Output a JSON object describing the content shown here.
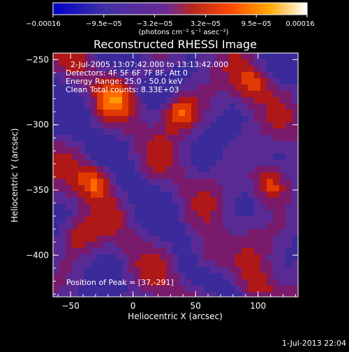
{
  "colorbar": {
    "tick_labels": [
      "−0.00016",
      "−9.5e−05",
      "−3.2e−05",
      "3.2e−05",
      "9.5e−05",
      "0.00016"
    ],
    "units_label": "(photons cm⁻² s⁻¹ asec⁻²)",
    "colors": [
      "#0000c8",
      "#5a2a9a",
      "#c83a00",
      "#ff5000",
      "#ffb000",
      "#ffffff"
    ]
  },
  "chart_data": {
    "type": "heatmap",
    "title": "Reconstructed RHESSI Image",
    "xlabel": "Heliocentric X (arcsec)",
    "ylabel": "Heliocentric Y (arcsec)",
    "xlim": [
      -64,
      132
    ],
    "ylim": [
      -432,
      -245
    ],
    "x_ticks": [
      -50,
      0,
      50,
      100
    ],
    "y_ticks": [
      -250,
      -300,
      -350,
      -400
    ],
    "x_tick_labels": [
      "−50",
      "0",
      "50",
      "100"
    ],
    "y_tick_labels": [
      "−250",
      "−300",
      "−350",
      "−400"
    ],
    "zlim": [
      -0.00016,
      0.00016
    ],
    "annotations": [
      "2-Jul-2005 13:07:42.000 to 13:13:42.000",
      "Detectors: 4F 5F 6F 7F 8F, Att 0",
      "Energy Range: 25.0 - 50.0 keV",
      "Clean    Total counts: 8.33E+03"
    ],
    "peak_label": "Position of Peak = [37,-291]",
    "hot_spots": [
      {
        "x": 37,
        "y": -291,
        "intensity": 1.0
      },
      {
        "x": 110,
        "y": -345,
        "intensity": 0.95
      },
      {
        "x": -30,
        "y": -343,
        "intensity": 0.9
      },
      {
        "x": 60,
        "y": -400,
        "intensity": 0.7
      },
      {
        "x": -15,
        "y": -280,
        "intensity": 0.6
      },
      {
        "x": 95,
        "y": -270,
        "intensity": 0.6
      },
      {
        "x": -45,
        "y": -385,
        "intensity": 0.65
      },
      {
        "x": 100,
        "y": -425,
        "intensity": 0.55
      }
    ]
  },
  "footer": {
    "timestamp": "1-Jul-2013 22:04"
  }
}
